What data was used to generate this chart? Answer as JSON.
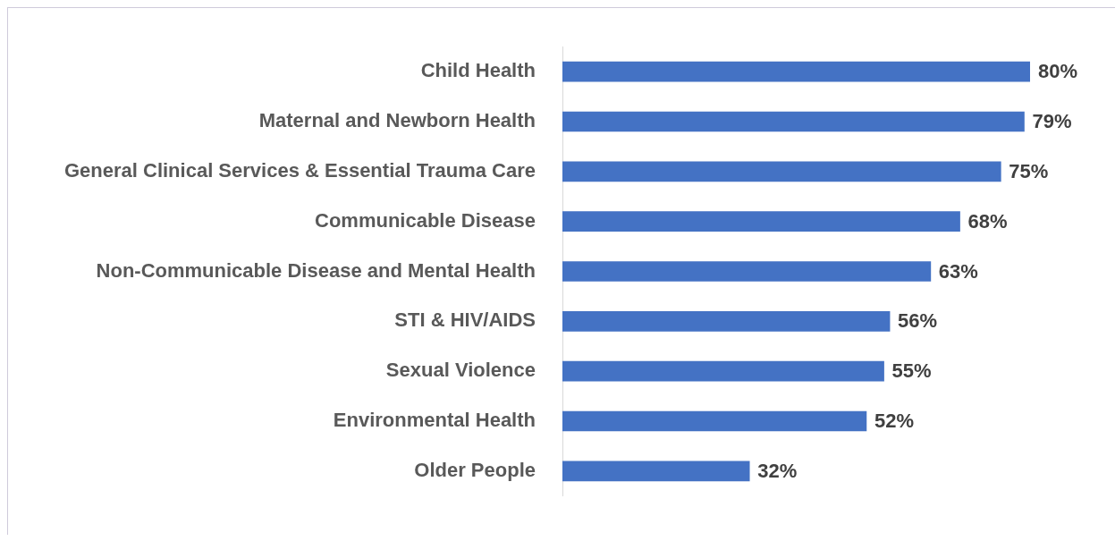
{
  "chart_data": {
    "type": "bar",
    "orientation": "horizontal",
    "categories": [
      "Child Health",
      "Maternal and Newborn Health",
      "General Clinical Services & Essential Trauma Care",
      "Communicable Disease",
      "Non-Communicable Disease and Mental Health",
      "STI & HIV/AIDS",
      "Sexual Violence",
      "Environmental Health",
      "Older People"
    ],
    "values": [
      80,
      79,
      75,
      68,
      63,
      56,
      55,
      52,
      32
    ],
    "value_labels": [
      "80%",
      "79%",
      "75%",
      "68%",
      "63%",
      "56%",
      "55%",
      "52%",
      "32%"
    ],
    "color": "#4472c4",
    "tick_labels": "y",
    "legend": false
  }
}
